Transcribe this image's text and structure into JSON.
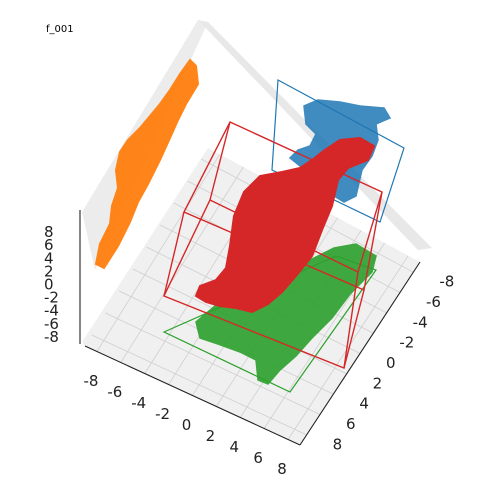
{
  "frame_label": "f_001",
  "chart_data": {
    "type": "scatter",
    "projection": "3d",
    "title": "",
    "axes": {
      "x": {
        "ticks": [
          -8,
          -6,
          -4,
          -2,
          0,
          2,
          4,
          6,
          8
        ],
        "range": [
          -9,
          9
        ]
      },
      "y": {
        "ticks": [
          -8,
          -6,
          -4,
          -2,
          0,
          2,
          4,
          6,
          8
        ],
        "range": [
          -9,
          9
        ]
      },
      "z": {
        "ticks": [
          -8,
          -6,
          -4,
          -2,
          0,
          2,
          4,
          6,
          8
        ],
        "range": [
          -9,
          9
        ]
      }
    },
    "grid": true,
    "pane_color": "#f2f2f2",
    "series": [
      {
        "color": "#ff7f0e",
        "role": "projection on x-z wall",
        "fill": true
      },
      {
        "color": "#1f77b4",
        "role": "projection on y-z wall",
        "fill": true
      },
      {
        "color": "#2ca02c",
        "role": "projection on floor",
        "fill": true
      },
      {
        "color": "#d62728",
        "role": "main 3d point cloud",
        "fill": true
      }
    ],
    "bounding_boxes": [
      {
        "color": "#d62728",
        "role": "3d bounding box"
      },
      {
        "color": "#2ca02c",
        "role": "floor bounding rectangle"
      },
      {
        "color": "#1f77b4",
        "role": "wall bounding rectangle"
      }
    ]
  }
}
